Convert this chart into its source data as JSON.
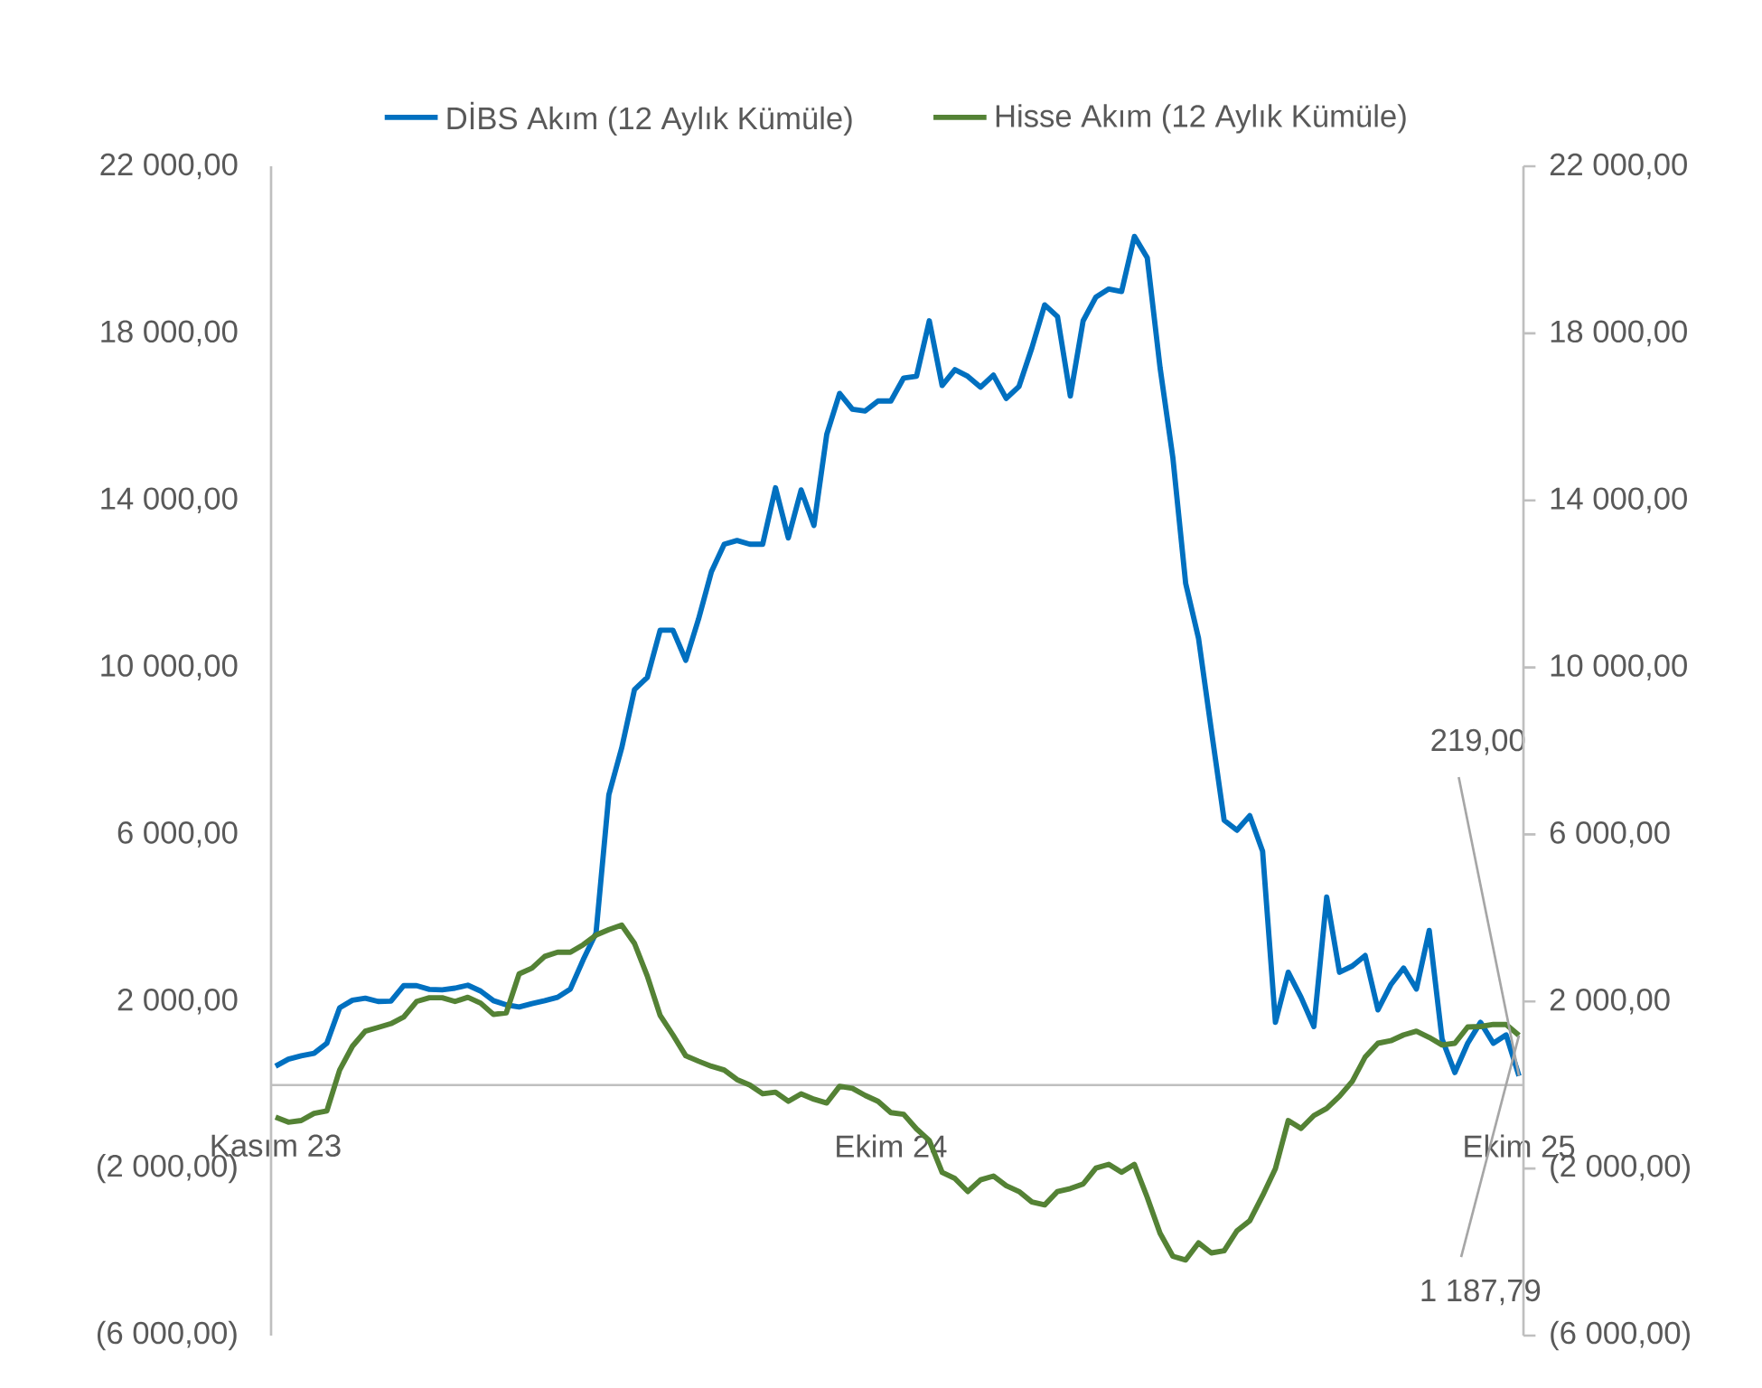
{
  "chart_data": {
    "type": "line",
    "categories": [
      "Kasım 23",
      null,
      null,
      null,
      null,
      null,
      null,
      null,
      null,
      null,
      null,
      null,
      null,
      null,
      null,
      null,
      null,
      null,
      null,
      null,
      null,
      null,
      null,
      null,
      null,
      null,
      null,
      null,
      null,
      null,
      null,
      null,
      null,
      null,
      null,
      null,
      null,
      null,
      null,
      null,
      null,
      null,
      null,
      null,
      null,
      null,
      null,
      null,
      "Ekim 24",
      null,
      null,
      null,
      null,
      null,
      null,
      null,
      null,
      null,
      null,
      null,
      null,
      null,
      null,
      null,
      null,
      null,
      null,
      null,
      null,
      null,
      null,
      null,
      null,
      null,
      null,
      null,
      null,
      null,
      null,
      null,
      null,
      null,
      null,
      null,
      null,
      null,
      null,
      null,
      null,
      null,
      null,
      null,
      null,
      null,
      null,
      null,
      null,
      "Ekim 25"
    ],
    "series": [
      {
        "name": "DİBS Akım (12 Aylık Kümüle)",
        "color": "#0070c0",
        "values": [
          450,
          620,
          700,
          760,
          1000,
          1850,
          2030,
          2080,
          2000,
          2010,
          2380,
          2380,
          2290,
          2280,
          2320,
          2390,
          2250,
          2020,
          1920,
          1870,
          1950,
          2020,
          2100,
          2300,
          3000,
          3640,
          6950,
          8070,
          9470,
          9760,
          10890,
          10890,
          10170,
          11160,
          12290,
          12950,
          13040,
          12950,
          12950,
          14300,
          13100,
          14250,
          13400,
          15580,
          16560,
          16180,
          16140,
          16380,
          16380,
          16930,
          16970,
          18300,
          16750,
          17130,
          16970,
          16710,
          17000,
          16440,
          16730,
          17650,
          18680,
          18400,
          16500,
          18300,
          18870,
          19060,
          19000,
          20320,
          19810,
          17180,
          15020,
          12010,
          10700,
          8500,
          6340,
          6100,
          6450,
          5600,
          1500,
          2700,
          2100,
          1400,
          4500,
          2700,
          2850,
          3100,
          1800,
          2400,
          2800,
          2300,
          3700,
          1100,
          300,
          1000,
          1500,
          1000,
          1200,
          219
        ]
      },
      {
        "name": "Hisse Akım (12 Aylık Kümüle)",
        "color": "#548235",
        "values": [
          -770,
          -890,
          -850,
          -680,
          -620,
          360,
          930,
          1290,
          1380,
          1470,
          1630,
          2000,
          2090,
          2090,
          2000,
          2100,
          1960,
          1690,
          1730,
          2660,
          2800,
          3080,
          3180,
          3180,
          3360,
          3590,
          3720,
          3830,
          3390,
          2610,
          1670,
          1200,
          700,
          570,
          450,
          360,
          130,
          0,
          -210,
          -170,
          -390,
          -210,
          -340,
          -430,
          -30,
          -80,
          -250,
          -390,
          -660,
          -700,
          -1050,
          -1330,
          -2090,
          -2240,
          -2550,
          -2270,
          -2180,
          -2410,
          -2550,
          -2800,
          -2870,
          -2550,
          -2480,
          -2370,
          -1990,
          -1900,
          -2090,
          -1900,
          -2690,
          -3550,
          -4100,
          -4190,
          -3780,
          -4020,
          -3970,
          -3490,
          -3250,
          -2650,
          -2000,
          -850,
          -1040,
          -730,
          -560,
          -270,
          90,
          670,
          1000,
          1060,
          1200,
          1290,
          1140,
          960,
          1000,
          1390,
          1400,
          1450,
          1450,
          1187.79
        ]
      }
    ],
    "ylim": [
      -6000,
      22000
    ],
    "yticks": [
      {
        "value": -6000,
        "label": "(6 000,00)"
      },
      {
        "value": -2000,
        "label": "(2 000,00)"
      },
      {
        "value": 2000,
        "label": "2 000,00"
      },
      {
        "value": 6000,
        "label": "6 000,00"
      },
      {
        "value": 10000,
        "label": "10 000,00"
      },
      {
        "value": 14000,
        "label": "14 000,00"
      },
      {
        "value": 18000,
        "label": "18 000,00"
      },
      {
        "value": 22000,
        "label": "22 000,00"
      }
    ],
    "y2lim": [
      -6000,
      22000
    ],
    "y2ticks": [
      {
        "value": -6000,
        "label": "(6 000,00)"
      },
      {
        "value": -2000,
        "label": "(2 000,00)"
      },
      {
        "value": 2000,
        "label": "2 000,00"
      },
      {
        "value": 6000,
        "label": "6 000,00"
      },
      {
        "value": 10000,
        "label": "10 000,00"
      },
      {
        "value": 14000,
        "label": "14 000,00"
      },
      {
        "value": 18000,
        "label": "18 000,00"
      },
      {
        "value": 22000,
        "label": "22 000,00"
      }
    ],
    "annotations": [
      {
        "text": "219,00",
        "x": "Ekim 25",
        "y": 219
      },
      {
        "text": "1 187,79",
        "x": "Ekim 25",
        "y": 1187.79
      }
    ],
    "legend": "top",
    "grid": false,
    "marker": "none",
    "line_style": "solid"
  }
}
